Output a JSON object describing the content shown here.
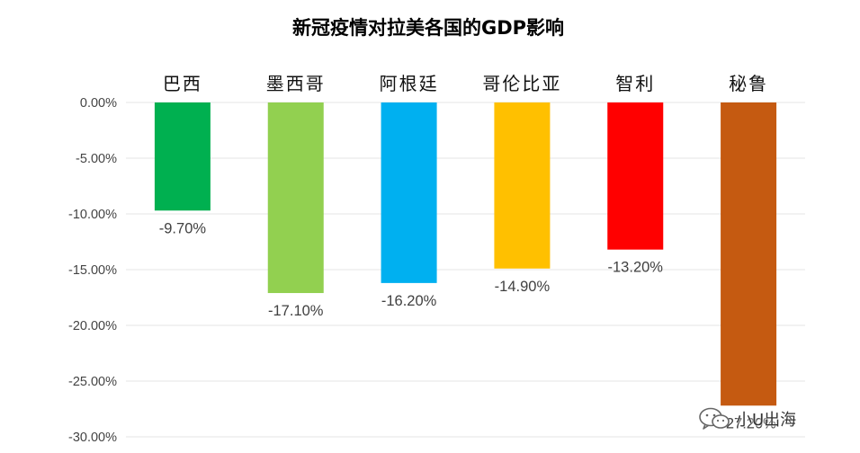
{
  "chart_data": {
    "type": "bar",
    "title": "新冠疫情对拉美各国的GDP影响",
    "xlabel": "",
    "ylabel": "",
    "categories": [
      "巴西",
      "墨西哥",
      "阿根廷",
      "哥伦比亚",
      "智利",
      "秘鲁"
    ],
    "values": [
      -9.7,
      -17.1,
      -16.2,
      -14.9,
      -13.2,
      -27.2
    ],
    "data_labels": [
      "-9.70%",
      "-17.10%",
      "-16.20%",
      "-14.90%",
      "-13.20%",
      "-27.20%"
    ],
    "colors": [
      "#00b050",
      "#92d050",
      "#00b0f0",
      "#ffc000",
      "#ff0000",
      "#c55a11"
    ],
    "ylim": [
      -30,
      0
    ],
    "yticks": [
      0,
      -5,
      -10,
      -15,
      -20,
      -25,
      -30
    ],
    "ytick_labels": [
      "0.00%",
      "-5.00%",
      "-10.00%",
      "-15.00%",
      "-20.00%",
      "-25.00%",
      "-30.00%"
    ],
    "category_axis_position": "top",
    "grid": true,
    "legend": "none"
  },
  "watermark": {
    "icon": "wechat-icon",
    "text": "小U出海"
  }
}
